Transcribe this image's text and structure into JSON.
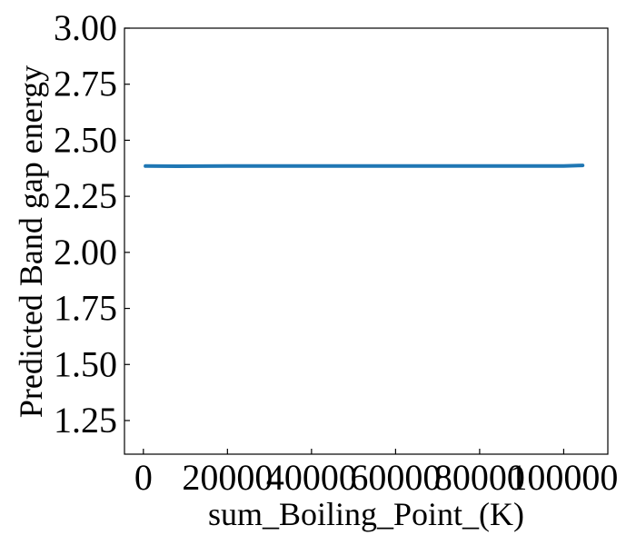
{
  "chart_data": {
    "type": "line",
    "title": "",
    "xlabel": "sum_Boiling_Point_(K)",
    "ylabel": "Predicted Band gap energy",
    "xlim": [
      -4500,
      110500
    ],
    "ylim": [
      1.1,
      3.0
    ],
    "xticks": [
      0,
      20000,
      40000,
      60000,
      80000,
      100000
    ],
    "xtick_labels": [
      "0",
      "20000",
      "40000",
      "60000",
      "80000",
      "100000"
    ],
    "yticks": [
      1.25,
      1.5,
      1.75,
      2.0,
      2.25,
      2.5,
      2.75,
      3.0
    ],
    "ytick_labels": [
      "1.25",
      "1.50",
      "1.75",
      "2.00",
      "2.25",
      "2.50",
      "2.75",
      "3.00"
    ],
    "grid": false,
    "legend": "none",
    "series": [
      {
        "color": "#1f77b4",
        "x": [
          500,
          8000,
          20000,
          40000,
          60000,
          80000,
          100000,
          104500
        ],
        "y": [
          2.385,
          2.384,
          2.385,
          2.385,
          2.385,
          2.385,
          2.385,
          2.388
        ]
      }
    ]
  }
}
